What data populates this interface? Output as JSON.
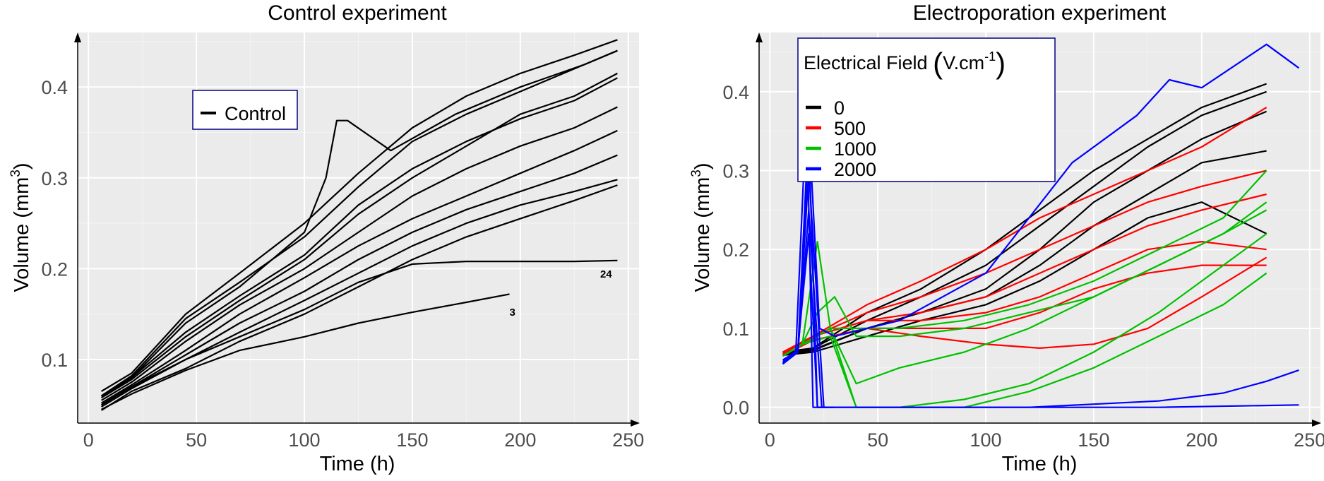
{
  "chart_data": [
    {
      "type": "line",
      "title": "Control experiment",
      "xlabel": "Time (h)",
      "ylabel_main": "Volume (mm",
      "ylabel_sup": "3",
      "ylabel_end": ")",
      "xlim": [
        -5,
        255
      ],
      "ylim": [
        0.03,
        0.46
      ],
      "xticks": [
        0,
        50,
        100,
        150,
        200,
        250
      ],
      "yticks": [
        0.1,
        0.2,
        0.3,
        0.4
      ],
      "ytick_labels": [
        "0.1",
        "0.2",
        "0.3",
        "0.4"
      ],
      "legend": {
        "position": "top-left-inside",
        "entries": [
          {
            "label": "Control",
            "color": "#000000"
          }
        ]
      },
      "annotations": [
        {
          "text": "24",
          "x": 237,
          "y": 0.19
        },
        {
          "text": "3",
          "x": 195,
          "y": 0.148
        }
      ],
      "series": [
        {
          "name": "Control",
          "color": "#000000",
          "x": [
            6,
            20,
            45,
            70,
            100,
            125,
            150,
            175,
            200,
            225,
            245
          ],
          "y": [
            0.065,
            0.085,
            0.15,
            0.195,
            0.25,
            0.305,
            0.355,
            0.39,
            0.415,
            0.435,
            0.452
          ]
        },
        {
          "name": "Control",
          "color": "#000000",
          "x": [
            6,
            20,
            45,
            70,
            100,
            110,
            115,
            120,
            140,
            170,
            200,
            230,
            245
          ],
          "y": [
            0.06,
            0.08,
            0.14,
            0.18,
            0.24,
            0.3,
            0.363,
            0.363,
            0.33,
            0.37,
            0.4,
            0.425,
            0.44
          ]
        },
        {
          "name": "Control",
          "color": "#000000",
          "x": [
            6,
            20,
            45,
            70,
            100,
            125,
            150,
            175,
            200,
            225,
            245
          ],
          "y": [
            0.058,
            0.08,
            0.13,
            0.17,
            0.215,
            0.27,
            0.31,
            0.34,
            0.365,
            0.385,
            0.41
          ]
        },
        {
          "name": "Control",
          "color": "#000000",
          "x": [
            6,
            20,
            45,
            70,
            100,
            125,
            150,
            175,
            200,
            225,
            245
          ],
          "y": [
            0.055,
            0.075,
            0.12,
            0.16,
            0.2,
            0.24,
            0.28,
            0.31,
            0.335,
            0.355,
            0.378
          ]
        },
        {
          "name": "Control",
          "color": "#000000",
          "x": [
            6,
            20,
            45,
            70,
            100,
            125,
            150,
            175,
            200,
            225,
            245
          ],
          "y": [
            0.052,
            0.072,
            0.11,
            0.15,
            0.19,
            0.225,
            0.255,
            0.28,
            0.305,
            0.33,
            0.352
          ]
        },
        {
          "name": "Control",
          "color": "#000000",
          "x": [
            6,
            20,
            45,
            70,
            100,
            125,
            150,
            175,
            200,
            225,
            245
          ],
          "y": [
            0.05,
            0.07,
            0.105,
            0.14,
            0.175,
            0.21,
            0.24,
            0.265,
            0.285,
            0.305,
            0.325
          ]
        },
        {
          "name": "Control",
          "color": "#000000",
          "x": [
            6,
            20,
            45,
            70,
            100,
            125,
            150,
            175,
            200,
            225,
            245
          ],
          "y": [
            0.048,
            0.068,
            0.1,
            0.13,
            0.165,
            0.195,
            0.225,
            0.25,
            0.27,
            0.285,
            0.298
          ]
        },
        {
          "name": "Control",
          "color": "#000000",
          "x": [
            6,
            20,
            45,
            70,
            100,
            125,
            150,
            175,
            200,
            225,
            245
          ],
          "y": [
            0.044,
            0.065,
            0.09,
            0.12,
            0.15,
            0.18,
            0.21,
            0.235,
            0.255,
            0.275,
            0.292
          ]
        },
        {
          "name": "Control",
          "color": "#000000",
          "x": [
            6,
            20,
            45,
            70,
            100,
            125,
            150,
            175,
            200,
            225,
            245
          ],
          "y": [
            0.06,
            0.082,
            0.145,
            0.185,
            0.235,
            0.29,
            0.34,
            0.37,
            0.395,
            0.42,
            0.44
          ]
        },
        {
          "name": "Control",
          "color": "#000000",
          "x": [
            6,
            20,
            45,
            70,
            100,
            125,
            150,
            175,
            200,
            225,
            245
          ],
          "y": [
            0.058,
            0.078,
            0.125,
            0.165,
            0.21,
            0.26,
            0.3,
            0.335,
            0.37,
            0.39,
            0.415
          ]
        },
        {
          "name": "Control",
          "color": "#000000",
          "x": [
            6,
            20,
            45,
            70,
            100,
            125,
            150,
            175,
            200,
            225,
            245
          ],
          "y": [
            0.05,
            0.07,
            0.1,
            0.125,
            0.155,
            0.185,
            0.205,
            0.208,
            0.208,
            0.208,
            0.209
          ]
        },
        {
          "name": "Control",
          "color": "#000000",
          "x": [
            6,
            20,
            45,
            70,
            100,
            125,
            150,
            175,
            195
          ],
          "y": [
            0.045,
            0.062,
            0.088,
            0.11,
            0.125,
            0.14,
            0.152,
            0.163,
            0.172
          ]
        }
      ]
    },
    {
      "type": "line",
      "title": "Electroporation experiment",
      "xlabel": "Time (h)",
      "ylabel_main": "Volume (mm",
      "ylabel_sup": "3",
      "ylabel_end": ")",
      "xlim": [
        -5,
        255
      ],
      "ylim": [
        -0.02,
        0.475
      ],
      "xticks": [
        0,
        50,
        100,
        150,
        200,
        250
      ],
      "yticks": [
        0.0,
        0.1,
        0.2,
        0.3,
        0.4
      ],
      "ytick_labels": [
        "0.0",
        "0.1",
        "0.2",
        "0.3",
        "0.4"
      ],
      "legend": {
        "position": "top-left-inside",
        "title_main": "Electrical Field ",
        "title_unit": "V.cm",
        "title_sup": "-1",
        "entries": [
          {
            "label": "0",
            "color": "#000000"
          },
          {
            "label": "500",
            "color": "#ff0000"
          },
          {
            "label": "1000",
            "color": "#00c000"
          },
          {
            "label": "2000",
            "color": "#0000ff"
          }
        ]
      },
      "series": [
        {
          "name": "0",
          "color": "#000000",
          "x": [
            6,
            20,
            45,
            70,
            100,
            125,
            150,
            175,
            200,
            230
          ],
          "y": [
            0.07,
            0.075,
            0.12,
            0.15,
            0.2,
            0.25,
            0.3,
            0.34,
            0.38,
            0.41
          ]
        },
        {
          "name": "0",
          "color": "#000000",
          "x": [
            6,
            20,
            45,
            70,
            100,
            125,
            150,
            175,
            200,
            230
          ],
          "y": [
            0.068,
            0.075,
            0.11,
            0.14,
            0.18,
            0.23,
            0.28,
            0.33,
            0.37,
            0.4
          ]
        },
        {
          "name": "0",
          "color": "#000000",
          "x": [
            6,
            20,
            45,
            70,
            100,
            125,
            150,
            175,
            200,
            230
          ],
          "y": [
            0.068,
            0.073,
            0.1,
            0.12,
            0.15,
            0.2,
            0.26,
            0.3,
            0.34,
            0.375
          ]
        },
        {
          "name": "0",
          "color": "#000000",
          "x": [
            6,
            20,
            45,
            70,
            100,
            125,
            150,
            175,
            200,
            230
          ],
          "y": [
            0.066,
            0.072,
            0.1,
            0.12,
            0.14,
            0.18,
            0.23,
            0.27,
            0.31,
            0.325
          ]
        },
        {
          "name": "0",
          "color": "#000000",
          "x": [
            6,
            20,
            45,
            70,
            100,
            125,
            150,
            175,
            200,
            230
          ],
          "y": [
            0.066,
            0.07,
            0.09,
            0.11,
            0.13,
            0.16,
            0.2,
            0.24,
            0.26,
            0.22
          ]
        },
        {
          "name": "500",
          "color": "#ff0000",
          "x": [
            6,
            20,
            45,
            70,
            100,
            125,
            150,
            175,
            200,
            230
          ],
          "y": [
            0.07,
            0.09,
            0.13,
            0.16,
            0.2,
            0.24,
            0.27,
            0.3,
            0.33,
            0.38
          ]
        },
        {
          "name": "500",
          "color": "#ff0000",
          "x": [
            6,
            20,
            45,
            70,
            100,
            125,
            150,
            175,
            200,
            230
          ],
          "y": [
            0.07,
            0.09,
            0.12,
            0.14,
            0.17,
            0.2,
            0.23,
            0.26,
            0.28,
            0.3
          ]
        },
        {
          "name": "500",
          "color": "#ff0000",
          "x": [
            6,
            20,
            45,
            70,
            100,
            125,
            150,
            175,
            200,
            230
          ],
          "y": [
            0.068,
            0.09,
            0.11,
            0.12,
            0.14,
            0.17,
            0.2,
            0.23,
            0.25,
            0.27
          ]
        },
        {
          "name": "500",
          "color": "#ff0000",
          "x": [
            6,
            20,
            45,
            70,
            100,
            125,
            150,
            175,
            200,
            230
          ],
          "y": [
            0.068,
            0.09,
            0.11,
            0.11,
            0.12,
            0.14,
            0.17,
            0.2,
            0.21,
            0.2
          ]
        },
        {
          "name": "500",
          "color": "#ff0000",
          "x": [
            6,
            20,
            45,
            70,
            100,
            125,
            150,
            175,
            200,
            230
          ],
          "y": [
            0.066,
            0.085,
            0.1,
            0.1,
            0.1,
            0.12,
            0.15,
            0.17,
            0.18,
            0.18
          ]
        },
        {
          "name": "500",
          "color": "#ff0000",
          "x": [
            6,
            20,
            45,
            70,
            100,
            125,
            150,
            175,
            200,
            230
          ],
          "y": [
            0.066,
            0.085,
            0.1,
            0.09,
            0.08,
            0.075,
            0.08,
            0.1,
            0.14,
            0.19
          ]
        },
        {
          "name": "1000",
          "color": "#00c000",
          "x": [
            6,
            15,
            22,
            28,
            40,
            60,
            90,
            120,
            150,
            180,
            210,
            230
          ],
          "y": [
            0.065,
            0.08,
            0.21,
            0.1,
            0.1,
            0.1,
            0.11,
            0.13,
            0.16,
            0.2,
            0.24,
            0.3
          ]
        },
        {
          "name": "1000",
          "color": "#00c000",
          "x": [
            6,
            15,
            22,
            30,
            40,
            60,
            90,
            120,
            150,
            180,
            210,
            230
          ],
          "y": [
            0.065,
            0.08,
            0.12,
            0.14,
            0.09,
            0.09,
            0.1,
            0.12,
            0.14,
            0.18,
            0.22,
            0.26
          ]
        },
        {
          "name": "1000",
          "color": "#00c000",
          "x": [
            6,
            15,
            28,
            40,
            60,
            90,
            120,
            150,
            180,
            210,
            230
          ],
          "y": [
            0.065,
            0.08,
            0.1,
            0.03,
            0.05,
            0.07,
            0.1,
            0.14,
            0.18,
            0.22,
            0.25
          ]
        },
        {
          "name": "1000",
          "color": "#00c000",
          "x": [
            6,
            15,
            28,
            40,
            60,
            90,
            120,
            150,
            180,
            210,
            230
          ],
          "y": [
            0.065,
            0.08,
            0.1,
            0.0,
            0.0,
            0.01,
            0.03,
            0.07,
            0.12,
            0.18,
            0.22
          ]
        },
        {
          "name": "1000",
          "color": "#00c000",
          "x": [
            6,
            15,
            28,
            40,
            60,
            90,
            120,
            150,
            180,
            210,
            230
          ],
          "y": [
            0.065,
            0.08,
            0.09,
            0.0,
            0.0,
            0.0,
            0.02,
            0.05,
            0.09,
            0.13,
            0.17
          ]
        },
        {
          "name": "2000",
          "color": "#0000ff",
          "x": [
            6,
            13,
            18,
            23,
            30,
            60,
            100,
            140,
            170,
            185,
            200,
            230,
            245
          ],
          "y": [
            0.055,
            0.07,
            0.36,
            0.1,
            0.09,
            0.11,
            0.17,
            0.31,
            0.37,
            0.415,
            0.405,
            0.46,
            0.43
          ]
        },
        {
          "name": "2000",
          "color": "#0000ff",
          "x": [
            6,
            13,
            18,
            22,
            26
          ],
          "y": [
            0.055,
            0.07,
            0.34,
            0.0,
            0.0
          ]
        },
        {
          "name": "2000",
          "color": "#0000ff",
          "x": [
            6,
            13,
            18,
            25,
            30
          ],
          "y": [
            0.058,
            0.07,
            0.3,
            0.0,
            0.0
          ]
        },
        {
          "name": "2000",
          "color": "#0000ff",
          "x": [
            6,
            12,
            17,
            20,
            30
          ],
          "y": [
            0.06,
            0.07,
            0.38,
            0.0,
            0.0
          ]
        },
        {
          "name": "2000",
          "color": "#0000ff",
          "x": [
            6,
            13,
            18,
            22,
            60,
            120,
            180,
            210,
            230,
            245
          ],
          "y": [
            0.055,
            0.075,
            0.22,
            0.0,
            0.0,
            0.0,
            0.008,
            0.018,
            0.033,
            0.047
          ]
        },
        {
          "name": "2000",
          "color": "#0000ff",
          "x": [
            6,
            13,
            18,
            24,
            60,
            120,
            180,
            245
          ],
          "y": [
            0.056,
            0.07,
            0.25,
            0.0,
            0.0,
            0.0,
            0.0,
            0.003
          ]
        }
      ]
    }
  ]
}
